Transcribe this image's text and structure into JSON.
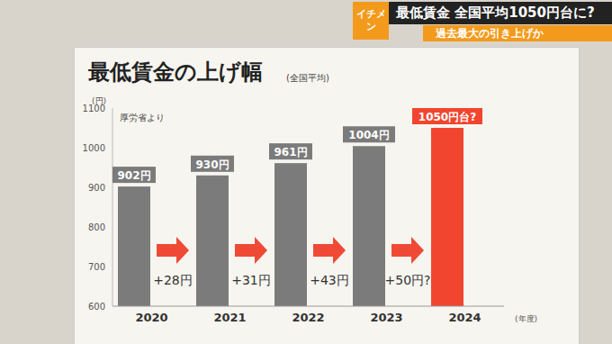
{
  "header": {
    "badge": "イチメン",
    "headline": "最低賃金 全国平均1050円台に?",
    "subheadline": "過去最大の引き上げか"
  },
  "chart_data": {
    "type": "bar",
    "title": "最低賃金の上げ幅",
    "subtitle": "(全国平均)",
    "source": "厚労省より",
    "ylabel": "(円)",
    "xlabel": "(年度)",
    "categories": [
      "2020",
      "2021",
      "2022",
      "2023",
      "2024"
    ],
    "values": [
      902,
      930,
      961,
      1004,
      1050
    ],
    "value_labels": [
      "902円",
      "930円",
      "961円",
      "1004円",
      "1050円台?"
    ],
    "data_labels": true,
    "colors": [
      "#7b7b7b",
      "#7b7b7b",
      "#7b7b7b",
      "#7b7b7b",
      "#f2452f"
    ],
    "annotations": [
      "+28円",
      "+31円",
      "+43円",
      "+50円?"
    ],
    "ylim": [
      600,
      1100
    ],
    "yticks": [
      600,
      700,
      800,
      900,
      1000,
      1100
    ],
    "grid": false
  }
}
